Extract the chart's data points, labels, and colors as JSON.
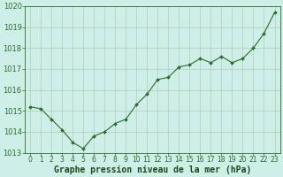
{
  "x": [
    0,
    1,
    2,
    3,
    4,
    5,
    6,
    7,
    8,
    9,
    10,
    11,
    12,
    13,
    14,
    15,
    16,
    17,
    18,
    19,
    20,
    21,
    22,
    23
  ],
  "y": [
    1015.2,
    1015.1,
    1014.6,
    1014.1,
    1013.5,
    1013.2,
    1013.8,
    1014.0,
    1014.4,
    1014.6,
    1015.3,
    1015.8,
    1016.5,
    1016.6,
    1017.1,
    1017.2,
    1017.5,
    1017.3,
    1017.6,
    1017.3,
    1017.5,
    1018.0,
    1018.7,
    1019.7
  ],
  "line_color": "#2a6e2a",
  "marker_color": "#2a6e2a",
  "bg_color": "#ceeee8",
  "grid_color": "#b8c8c0",
  "xlabel": "Graphe pression niveau de la mer (hPa)",
  "ylim": [
    1013.0,
    1020.0
  ],
  "xlim_min": -0.5,
  "xlim_max": 23.5,
  "yticks": [
    1013,
    1014,
    1015,
    1016,
    1017,
    1018,
    1019,
    1020
  ],
  "xticks": [
    0,
    1,
    2,
    3,
    4,
    5,
    6,
    7,
    8,
    9,
    10,
    11,
    12,
    13,
    14,
    15,
    16,
    17,
    18,
    19,
    20,
    21,
    22,
    23
  ],
  "tick_color": "#2a6e2a",
  "xlabel_color": "#1a4a1a",
  "xlabel_fontsize": 7,
  "tick_fontsize": 5.5,
  "ytick_fontsize": 6
}
